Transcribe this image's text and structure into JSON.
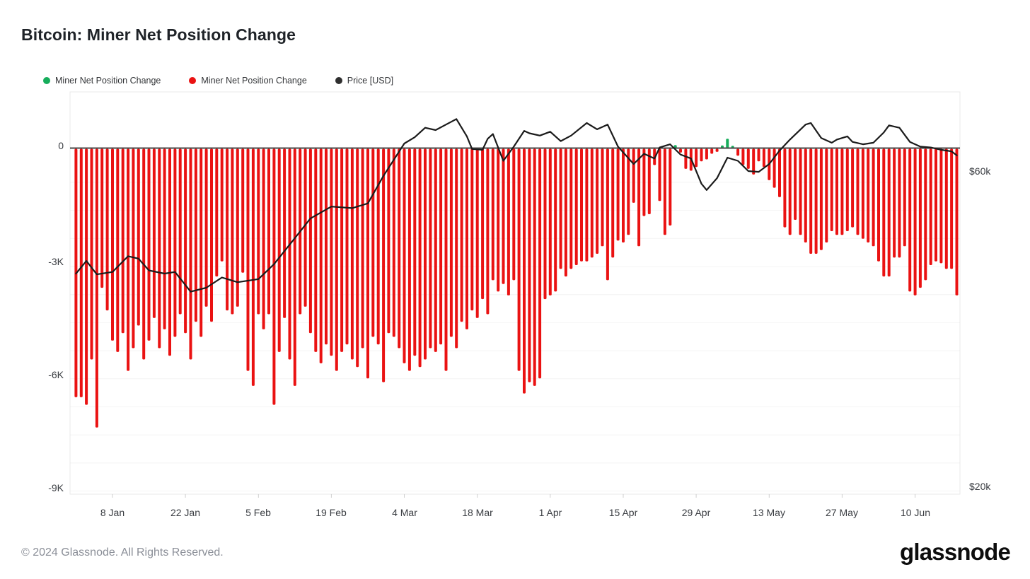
{
  "page": {
    "title": "Bitcoin: Miner Net Position Change",
    "footer_copyright": "© 2024 Glassnode. All Rights Reserved.",
    "brand_logo_text": "glassnode"
  },
  "legend": [
    {
      "label": "Miner Net Position Change",
      "color": "#16ad5b"
    },
    {
      "label": "Miner Net Position Change",
      "color": "#ea1212"
    },
    {
      "label": "Price [USD]",
      "color": "#2f2f2f"
    }
  ],
  "chart_data": {
    "type": "bar+line",
    "title": "Bitcoin: Miner Net Position Change",
    "grid": true,
    "legend_position": "top-left",
    "start_date": "2024-01-01",
    "cadence": "daily",
    "bar_series": {
      "name": "Miner Net Position Change",
      "unit": "BTC (thousands)",
      "positive_color": "#16ad5b",
      "negative_color": "#ea1212",
      "values_k": [
        -6.6,
        -6.6,
        -6.8,
        -5.6,
        -7.4,
        -3.7,
        -4.3,
        -5.1,
        -5.4,
        -4.9,
        -5.9,
        -5.3,
        -4.7,
        -5.6,
        -5.1,
        -4.5,
        -5.3,
        -4.8,
        -5.5,
        -5.0,
        -4.4,
        -4.9,
        -5.6,
        -4.6,
        -5.0,
        -4.2,
        -4.6,
        -3.4,
        -3.0,
        -4.3,
        -4.4,
        -4.2,
        -3.3,
        -5.9,
        -6.3,
        -4.4,
        -4.8,
        -4.4,
        -6.8,
        -5.4,
        -4.5,
        -5.6,
        -6.3,
        -4.4,
        -4.2,
        -4.9,
        -5.4,
        -5.7,
        -5.2,
        -5.5,
        -5.9,
        -5.4,
        -5.2,
        -5.6,
        -5.8,
        -5.3,
        -6.1,
        -5.0,
        -5.2,
        -6.2,
        -4.9,
        -5.0,
        -5.3,
        -5.7,
        -5.9,
        -5.5,
        -5.8,
        -5.6,
        -5.3,
        -5.4,
        -5.2,
        -5.9,
        -5.0,
        -5.3,
        -4.6,
        -4.8,
        -4.3,
        -4.5,
        -4.0,
        -4.4,
        -3.5,
        -3.8,
        -3.6,
        -3.9,
        -3.5,
        -5.9,
        -6.5,
        -6.2,
        -6.3,
        -6.1,
        -4.0,
        -3.9,
        -3.8,
        -3.2,
        -3.4,
        -3.2,
        -3.1,
        -3.0,
        -3.0,
        -2.9,
        -2.8,
        -2.6,
        -3.5,
        -2.9,
        -2.45,
        -2.5,
        -2.3,
        -1.45,
        -2.6,
        -1.8,
        -1.75,
        -0.45,
        -1.4,
        -2.3,
        -2.05,
        0.08,
        -0.12,
        -0.55,
        -0.6,
        -0.5,
        -0.35,
        -0.3,
        -0.15,
        -0.1,
        0.07,
        0.25,
        0.06,
        -0.2,
        -0.45,
        -0.55,
        -0.7,
        -0.35,
        -0.5,
        -0.85,
        -1.05,
        -1.3,
        -2.1,
        -2.3,
        -1.9,
        -2.3,
        -2.5,
        -2.8,
        -2.8,
        -2.7,
        -2.5,
        -2.2,
        -2.3,
        -2.3,
        -2.2,
        -2.1,
        -2.3,
        -2.4,
        -2.5,
        -2.6,
        -3.0,
        -3.4,
        -3.4,
        -2.9,
        -2.9,
        -2.6,
        -3.8,
        -3.9,
        -3.7,
        -3.5,
        -3.1,
        -3.0,
        -3.05,
        -3.2,
        -3.2,
        -3.9
      ]
    },
    "price_series": {
      "name": "Price [USD]",
      "color": "#1b1b1b",
      "points_day_usdk": [
        [
          0,
          47.0
        ],
        [
          2,
          48.6
        ],
        [
          4,
          46.9
        ],
        [
          7,
          47.2
        ],
        [
          10,
          49.2
        ],
        [
          12,
          48.9
        ],
        [
          14,
          47.4
        ],
        [
          17,
          47.0
        ],
        [
          19,
          47.2
        ],
        [
          22,
          44.7
        ],
        [
          25,
          45.2
        ],
        [
          28,
          46.5
        ],
        [
          31,
          45.9
        ],
        [
          35,
          46.3
        ],
        [
          38,
          48.2
        ],
        [
          42,
          51.5
        ],
        [
          45,
          54.0
        ],
        [
          49,
          55.5
        ],
        [
          53,
          55.3
        ],
        [
          56,
          55.9
        ],
        [
          59,
          59.4
        ],
        [
          63,
          63.5
        ],
        [
          65,
          64.3
        ],
        [
          67,
          65.5
        ],
        [
          69,
          65.2
        ],
        [
          71,
          65.9
        ],
        [
          73,
          66.6
        ],
        [
          75,
          64.4
        ],
        [
          76,
          62.8
        ],
        [
          78,
          62.7
        ],
        [
          79,
          64.1
        ],
        [
          80,
          64.7
        ],
        [
          82,
          61.3
        ],
        [
          84,
          63.1
        ],
        [
          86,
          65.1
        ],
        [
          87,
          64.8
        ],
        [
          89,
          64.5
        ],
        [
          91,
          65.0
        ],
        [
          93,
          63.8
        ],
        [
          95,
          64.5
        ],
        [
          98,
          66.1
        ],
        [
          100,
          65.3
        ],
        [
          102,
          65.9
        ],
        [
          104,
          63.1
        ],
        [
          107,
          60.9
        ],
        [
          109,
          62.2
        ],
        [
          111,
          61.6
        ],
        [
          112,
          63.0
        ],
        [
          114,
          63.4
        ],
        [
          116,
          62.1
        ],
        [
          118,
          61.6
        ],
        [
          120,
          58.4
        ],
        [
          121,
          57.6
        ],
        [
          123,
          59.1
        ],
        [
          125,
          61.7
        ],
        [
          127,
          61.3
        ],
        [
          129,
          60.0
        ],
        [
          131,
          59.9
        ],
        [
          133,
          60.9
        ],
        [
          135,
          62.6
        ],
        [
          137,
          64.0
        ],
        [
          140,
          65.9
        ],
        [
          141,
          66.1
        ],
        [
          143,
          64.2
        ],
        [
          145,
          63.6
        ],
        [
          146,
          64.0
        ],
        [
          148,
          64.4
        ],
        [
          149,
          63.7
        ],
        [
          151,
          63.4
        ],
        [
          153,
          63.6
        ],
        [
          155,
          64.9
        ],
        [
          156,
          65.8
        ],
        [
          158,
          65.5
        ],
        [
          160,
          63.7
        ],
        [
          162,
          63.1
        ],
        [
          164,
          63.0
        ],
        [
          166,
          62.7
        ],
        [
          168,
          62.5
        ],
        [
          169,
          62.0
        ]
      ]
    },
    "left_axis": {
      "title": "Miner Net Position Change",
      "ticks": [
        {
          "label": "0",
          "value_k": 0
        },
        {
          "label": "-3K",
          "value_k": -3
        },
        {
          "label": "-6K",
          "value_k": -6
        },
        {
          "label": "-9K",
          "value_k": -9
        }
      ],
      "ylim_k": [
        -9.2,
        1.5
      ]
    },
    "right_axis": {
      "title": "Price [USD]",
      "ticks": [
        {
          "label": "$60k",
          "value_usd_k": 60
        },
        {
          "label": "$20k",
          "value_usd_k": 20
        }
      ],
      "ylim_usd_k": [
        20,
        71
      ]
    },
    "x_axis": {
      "tick_labels": [
        "8 Jan",
        "22 Jan",
        "5 Feb",
        "19 Feb",
        "4 Mar",
        "18 Mar",
        "1 Apr",
        "15 Apr",
        "29 Apr",
        "13 May",
        "27 May",
        "10 Jun"
      ],
      "tick_day_indices": [
        7,
        21,
        35,
        49,
        63,
        77,
        91,
        105,
        119,
        133,
        147,
        161
      ]
    }
  }
}
